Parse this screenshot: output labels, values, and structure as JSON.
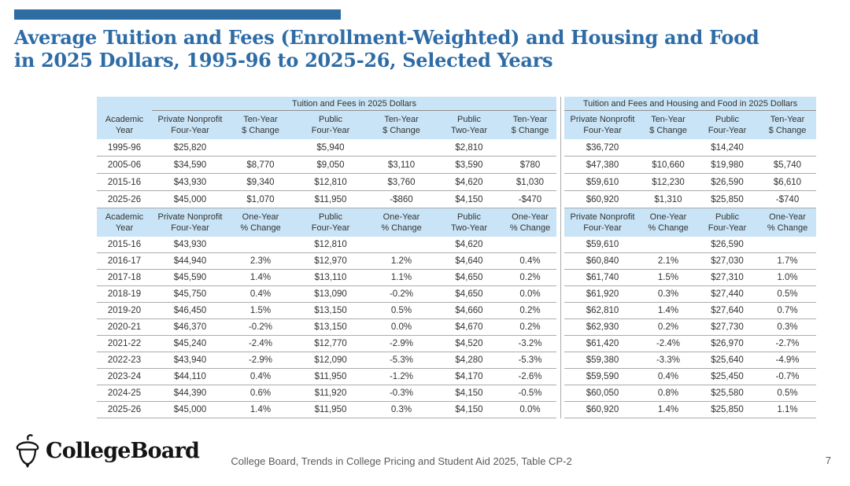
{
  "title": {
    "line1": "Average Tuition and Fees (Enrollment-Weighted) and Housing and Food",
    "line2": "in 2025 Dollars, 1995-96 to 2025-26, Selected Years"
  },
  "table": {
    "group_headers": [
      "Tuition and Fees in 2025 Dollars",
      "Tuition and Fees and Housing and Food in 2025 Dollars"
    ],
    "section1": {
      "columns": [
        "Academic\nYear",
        "Private Nonprofit\nFour-Year",
        "Ten-Year\n$ Change",
        "Public\nFour-Year",
        "Ten-Year\n$ Change",
        "Public\nTwo-Year",
        "Ten-Year\n$ Change",
        "Private Nonprofit\nFour-Year",
        "Ten-Year\n$ Change",
        "Public\nFour-Year",
        "Ten-Year\n$ Change"
      ],
      "rows": [
        [
          "1995-96",
          "$25,820",
          "",
          "$5,940",
          "",
          "$2,810",
          "",
          "$36,720",
          "",
          "$14,240",
          ""
        ],
        [
          "2005-06",
          "$34,590",
          "$8,770",
          "$9,050",
          "$3,110",
          "$3,590",
          "$780",
          "$47,380",
          "$10,660",
          "$19,980",
          "$5,740"
        ],
        [
          "2015-16",
          "$43,930",
          "$9,340",
          "$12,810",
          "$3,760",
          "$4,620",
          "$1,030",
          "$59,610",
          "$12,230",
          "$26,590",
          "$6,610"
        ],
        [
          "2025-26",
          "$45,000",
          "$1,070",
          "$11,950",
          "-$860",
          "$4,150",
          "-$470",
          "$60,920",
          "$1,310",
          "$25,850",
          "-$740"
        ]
      ]
    },
    "section2": {
      "columns": [
        "Academic\nYear",
        "Private Nonprofit\nFour-Year",
        "One-Year\n% Change",
        "Public\nFour-Year",
        "One-Year\n% Change",
        "Public\nTwo-Year",
        "One-Year\n% Change",
        "Private Nonprofit\nFour-Year",
        "One-Year\n% Change",
        "Public\nFour-Year",
        "One-Year\n% Change"
      ],
      "rows": [
        [
          "2015-16",
          "$43,930",
          "",
          "$12,810",
          "",
          "$4,620",
          "",
          "$59,610",
          "",
          "$26,590",
          ""
        ],
        [
          "2016-17",
          "$44,940",
          "2.3%",
          "$12,970",
          "1.2%",
          "$4,640",
          "0.4%",
          "$60,840",
          "2.1%",
          "$27,030",
          "1.7%"
        ],
        [
          "2017-18",
          "$45,590",
          "1.4%",
          "$13,110",
          "1.1%",
          "$4,650",
          "0.2%",
          "$61,740",
          "1.5%",
          "$27,310",
          "1.0%"
        ],
        [
          "2018-19",
          "$45,750",
          "0.4%",
          "$13,090",
          "-0.2%",
          "$4,650",
          "0.0%",
          "$61,920",
          "0.3%",
          "$27,440",
          "0.5%"
        ],
        [
          "2019-20",
          "$46,450",
          "1.5%",
          "$13,150",
          "0.5%",
          "$4,660",
          "0.2%",
          "$62,810",
          "1.4%",
          "$27,640",
          "0.7%"
        ],
        [
          "2020-21",
          "$46,370",
          "-0.2%",
          "$13,150",
          "0.0%",
          "$4,670",
          "0.2%",
          "$62,930",
          "0.2%",
          "$27,730",
          "0.3%"
        ],
        [
          "2021-22",
          "$45,240",
          "-2.4%",
          "$12,770",
          "-2.9%",
          "$4,520",
          "-3.2%",
          "$61,420",
          "-2.4%",
          "$26,970",
          "-2.7%"
        ],
        [
          "2022-23",
          "$43,940",
          "-2.9%",
          "$12,090",
          "-5.3%",
          "$4,280",
          "-5.3%",
          "$59,380",
          "-3.3%",
          "$25,640",
          "-4.9%"
        ],
        [
          "2023-24",
          "$44,110",
          "0.4%",
          "$11,950",
          "-1.2%",
          "$4,170",
          "-2.6%",
          "$59,590",
          "0.4%",
          "$25,450",
          "-0.7%"
        ],
        [
          "2024-25",
          "$44,390",
          "0.6%",
          "$11,920",
          "-0.3%",
          "$4,150",
          "-0.5%",
          "$60,050",
          "0.8%",
          "$25,580",
          "0.5%"
        ],
        [
          "2025-26",
          "$45,000",
          "1.4%",
          "$11,950",
          "0.3%",
          "$4,150",
          "0.0%",
          "$60,920",
          "1.4%",
          "$25,850",
          "1.1%"
        ]
      ]
    }
  },
  "footer": {
    "logo_text": "CollegeBoard",
    "source": "College Board, Trends in College Pricing and Student Aid 2025, Table CP-2",
    "page": "7"
  },
  "colors": {
    "accent_blue": "#2d6da4",
    "title_blue": "#2e6ca6",
    "header_light_blue": "#c9e4f6",
    "grid_line_gray": "#ababab",
    "body_text": "#333333",
    "footer_text_gray": "#5a5a5a",
    "logo_black": "#141414"
  }
}
